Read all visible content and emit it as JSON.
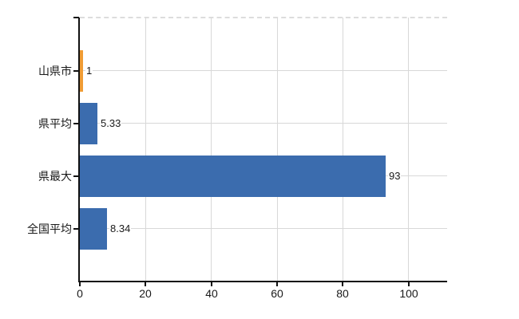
{
  "chart_data": {
    "type": "bar",
    "orientation": "horizontal",
    "title": "",
    "xlabel": "",
    "ylabel": "",
    "categories": [
      "山県市",
      "県平均",
      "県最大",
      "全国平均"
    ],
    "values": [
      1,
      5.33,
      93,
      8.34
    ],
    "value_labels": [
      "1",
      "5.33",
      "93",
      "8.34"
    ],
    "series_colors": [
      "#f09c35",
      "#3b6cae",
      "#3b6cae",
      "#3b6cae"
    ],
    "x_ticks": [
      0,
      20,
      40,
      60,
      80,
      100
    ],
    "x_tick_labels": [
      "0",
      "20",
      "40",
      "60",
      "80",
      "100"
    ],
    "xlim": [
      0,
      111.6
    ],
    "grid": true,
    "legend": false
  },
  "colors": {
    "background": "#ffffff",
    "bar_blue": "#3b6cae",
    "bar_orange": "#f09c35",
    "axis_line": "#111111",
    "gridline": "#d8d8d8",
    "plot_top_border": "#dcdcdc",
    "text": "#1a1a1a"
  }
}
